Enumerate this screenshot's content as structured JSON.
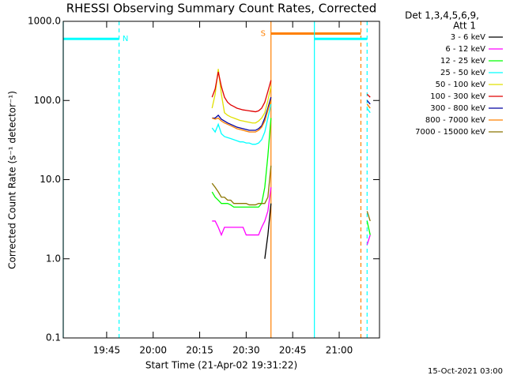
{
  "chart_data": {
    "type": "line",
    "title": "RHESSI Observing Summary Count Rates, Corrected",
    "x_label": "Start Time (21-Apr-02 19:31:22)",
    "y_label": "Corrected Count Rate (s⁻¹ detector⁻¹)",
    "legend_title": [
      "Det 1,3,4,5,6,9,",
      "Att 1"
    ],
    "footer": "15-Oct-2021 03:00",
    "log_y": true,
    "xlim": [
      "19:31",
      "21:13"
    ],
    "xticks": [
      "19:45",
      "20:00",
      "20:15",
      "20:30",
      "20:45",
      "21:00"
    ],
    "ylim": [
      0.1,
      1000
    ],
    "yticks": [
      0.1,
      {
        "value": 1,
        "label": "1.0"
      },
      {
        "value": 10,
        "label": "10.0"
      },
      {
        "value": 100,
        "label": "100.0"
      },
      {
        "value": 1000,
        "label": "1000.0"
      }
    ],
    "x": [
      "20:19",
      "20:20",
      "20:21",
      "20:22",
      "20:23",
      "20:24",
      "20:25",
      "20:26",
      "20:27",
      "20:28",
      "20:29",
      "20:30",
      "20:31",
      "20:32",
      "20:33",
      "20:34",
      "20:35",
      "20:36",
      "20:37",
      "20:38",
      "20:39",
      "21:09",
      "21:10"
    ],
    "series": [
      {
        "name": "3 - 6 keV",
        "color": "#000000",
        "values": [
          null,
          null,
          null,
          null,
          null,
          null,
          null,
          null,
          null,
          null,
          null,
          null,
          null,
          null,
          null,
          null,
          null,
          1,
          2,
          5,
          null,
          null,
          null
        ]
      },
      {
        "name": "6 - 12 keV",
        "color": "#ff00ff",
        "values": [
          3,
          3,
          2.5,
          2,
          2.5,
          2.5,
          2.5,
          2.5,
          2.5,
          2.5,
          2.5,
          2,
          2,
          2,
          2,
          2,
          2.5,
          3,
          4,
          8,
          null,
          1.5,
          2
        ]
      },
      {
        "name": "12 - 25 keV",
        "color": "#00ff00",
        "values": [
          7,
          6,
          5.5,
          5,
          5,
          5,
          4.8,
          4.5,
          4.5,
          4.5,
          4.5,
          4.5,
          4.5,
          4.5,
          4.5,
          4.5,
          5,
          8,
          20,
          60,
          null,
          3,
          2
        ]
      },
      {
        "name": "25 - 50 keV",
        "color": "#00ffff",
        "values": [
          45,
          40,
          50,
          38,
          35,
          34,
          33,
          32,
          31,
          30,
          30,
          29,
          29,
          28,
          28,
          29,
          32,
          40,
          60,
          90,
          null,
          80,
          70
        ]
      },
      {
        "name": "50 - 100 keV",
        "color": "#e0e000",
        "values": [
          80,
          120,
          250,
          120,
          70,
          65,
          62,
          60,
          58,
          56,
          55,
          54,
          53,
          52,
          52,
          55,
          60,
          70,
          100,
          150,
          null,
          90,
          80
        ]
      },
      {
        "name": "100 - 300 keV",
        "color": "#e00000",
        "values": [
          110,
          140,
          230,
          150,
          110,
          95,
          88,
          84,
          80,
          78,
          76,
          75,
          74,
          73,
          72,
          74,
          80,
          95,
          130,
          180,
          null,
          120,
          110
        ]
      },
      {
        "name": "300 - 800 keV",
        "color": "#0000a0",
        "values": [
          60,
          60,
          65,
          58,
          55,
          52,
          50,
          48,
          46,
          45,
          44,
          43,
          42,
          42,
          42,
          44,
          48,
          60,
          80,
          110,
          null,
          100,
          90
        ]
      },
      {
        "name": "800 - 7000 keV",
        "color": "#ff8000",
        "values": [
          60,
          58,
          60,
          55,
          52,
          50,
          48,
          46,
          44,
          43,
          42,
          41,
          40,
          40,
          40,
          42,
          46,
          55,
          75,
          100,
          null,
          90,
          80
        ]
      },
      {
        "name": "7000 - 15000 keV",
        "color": "#8b7500",
        "values": [
          9,
          8,
          7,
          6,
          6,
          5.5,
          5.5,
          5,
          5,
          5,
          5,
          5,
          4.8,
          4.8,
          4.8,
          5,
          5,
          5,
          6,
          15,
          null,
          4,
          3
        ]
      }
    ],
    "flags": [
      {
        "label": "N",
        "label_at": "end",
        "color": "#00ffff",
        "start": "19:31",
        "end": "19:49",
        "level": 600
      },
      {
        "label": "S",
        "label_at": "start",
        "color": "#ff8000",
        "start": "20:38",
        "end": "21:07",
        "level": 700
      },
      {
        "color": "#00ffff",
        "start": "20:52",
        "end": "21:09",
        "level": 600
      }
    ]
  }
}
